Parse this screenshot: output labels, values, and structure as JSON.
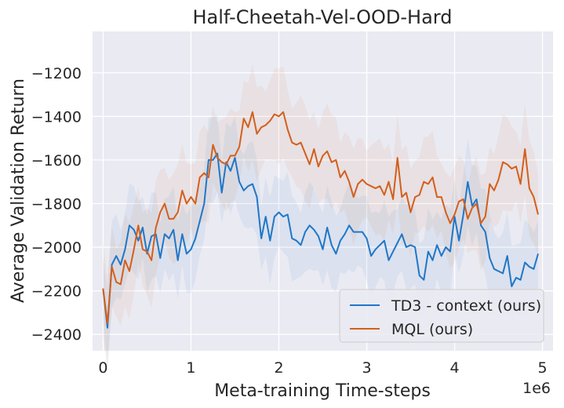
{
  "chart_data": {
    "type": "line",
    "title": "Half-Cheetah-Vel-OOD-Hard",
    "xlabel": "Meta-training Time-steps",
    "ylabel": "Average Validation Return",
    "x_multiplier_label": "1e6",
    "xlim": [
      -0.12,
      5.12
    ],
    "ylim": [
      -2475,
      -1010
    ],
    "xticks": [
      0,
      1,
      2,
      3,
      4,
      5
    ],
    "xtick_labels": [
      "0",
      "1",
      "2",
      "3",
      "4",
      "5"
    ],
    "yticks": [
      -2400,
      -2200,
      -2000,
      -1800,
      -1600,
      -1400,
      -1200
    ],
    "ytick_labels": [
      "−2400",
      "−2200",
      "−2000",
      "−1800",
      "−1600",
      "−1400",
      "−1200"
    ],
    "grid": true,
    "legend_position": "lower-right",
    "x": [
      0.0,
      0.05,
      0.1,
      0.15,
      0.2,
      0.25,
      0.3,
      0.35,
      0.4,
      0.45,
      0.5,
      0.55,
      0.6,
      0.65,
      0.7,
      0.75,
      0.8,
      0.85,
      0.9,
      0.95,
      1.0,
      1.05,
      1.1,
      1.15,
      1.2,
      1.25,
      1.3,
      1.35,
      1.4,
      1.45,
      1.5,
      1.55,
      1.6,
      1.65,
      1.7,
      1.75,
      1.8,
      1.85,
      1.9,
      1.95,
      2.0,
      2.05,
      2.1,
      2.15,
      2.2,
      2.25,
      2.3,
      2.35,
      2.4,
      2.45,
      2.5,
      2.55,
      2.6,
      2.65,
      2.7,
      2.75,
      2.8,
      2.85,
      2.9,
      2.95,
      3.0,
      3.05,
      3.1,
      3.15,
      3.2,
      3.25,
      3.3,
      3.35,
      3.4,
      3.45,
      3.5,
      3.55,
      3.6,
      3.65,
      3.7,
      3.75,
      3.8,
      3.85,
      3.9,
      3.95,
      4.0,
      4.05,
      4.1,
      4.15,
      4.2,
      4.25,
      4.3,
      4.35,
      4.4,
      4.45,
      4.5,
      4.55,
      4.6,
      4.65,
      4.7,
      4.75,
      4.8,
      4.85,
      4.9,
      4.95
    ],
    "series": [
      {
        "name": "TD3 - context (ours)",
        "color": "#1f77c8",
        "values": [
          -2190,
          -2370,
          -2080,
          -2040,
          -2080,
          -2010,
          -1900,
          -1920,
          -1970,
          -1910,
          -2030,
          -1950,
          -1940,
          -2050,
          -1940,
          -1960,
          -1920,
          -2060,
          -1940,
          -2030,
          -2010,
          -1960,
          -1880,
          -1800,
          -1600,
          -1600,
          -1570,
          -1750,
          -1610,
          -1650,
          -1590,
          -1700,
          -1740,
          -1720,
          -1710,
          -1770,
          -1960,
          -1860,
          -1970,
          -1860,
          -1840,
          -1860,
          -1850,
          -1960,
          -1970,
          -1990,
          -1930,
          -1900,
          -1920,
          -1950,
          -2010,
          -1910,
          -1990,
          -2030,
          -1970,
          -1940,
          -1900,
          -1930,
          -1930,
          -1930,
          -1960,
          -2040,
          -2010,
          -1990,
          -1970,
          -2060,
          -2020,
          -1980,
          -1940,
          -2000,
          -1990,
          -2000,
          -2130,
          -2150,
          -2020,
          -2060,
          -1990,
          -2040,
          -2000,
          -2020,
          -1860,
          -1970,
          -1850,
          -1700,
          -1810,
          -1780,
          -1900,
          -1930,
          -2050,
          -2100,
          -2110,
          -2120,
          -2040,
          -2180,
          -2140,
          -2150,
          -2070,
          -2090,
          -2100,
          -2030
        ]
      },
      {
        "name": "MQL (ours)",
        "color": "#d35f1c",
        "values": [
          -2190,
          -2350,
          -2090,
          -2160,
          -2170,
          -2060,
          -2110,
          -2010,
          -1900,
          -2010,
          -2020,
          -2060,
          -1910,
          -1840,
          -1800,
          -1870,
          -1870,
          -1840,
          -1740,
          -1800,
          -1770,
          -1800,
          -1680,
          -1660,
          -1680,
          -1530,
          -1590,
          -1610,
          -1620,
          -1580,
          -1580,
          -1540,
          -1410,
          -1450,
          -1380,
          -1480,
          -1450,
          -1440,
          -1420,
          -1390,
          -1400,
          -1380,
          -1460,
          -1520,
          -1530,
          -1520,
          -1570,
          -1620,
          -1550,
          -1630,
          -1580,
          -1560,
          -1610,
          -1600,
          -1680,
          -1650,
          -1700,
          -1770,
          -1710,
          -1690,
          -1710,
          -1720,
          -1730,
          -1720,
          -1760,
          -1700,
          -1780,
          -1590,
          -1770,
          -1750,
          -1840,
          -1770,
          -1760,
          -1700,
          -1710,
          -1680,
          -1770,
          -1770,
          -1840,
          -1890,
          -1850,
          -1790,
          -1780,
          -1870,
          -1820,
          -1800,
          -1890,
          -1860,
          -1710,
          -1740,
          -1690,
          -1610,
          -1620,
          -1640,
          -1630,
          -1710,
          -1550,
          -1730,
          -1770,
          -1850
        ]
      }
    ]
  }
}
